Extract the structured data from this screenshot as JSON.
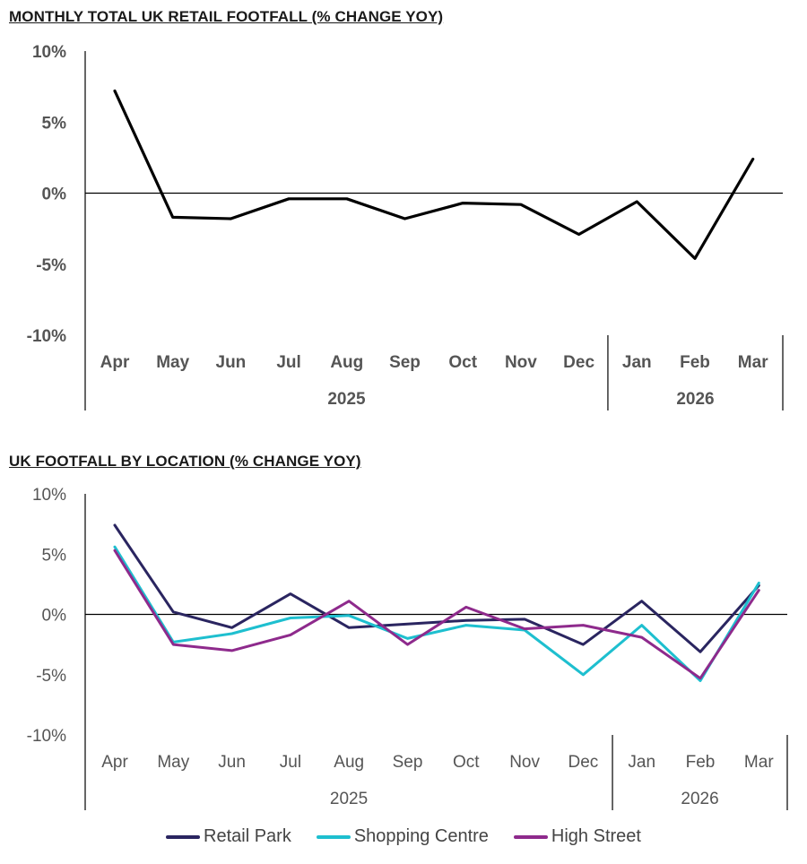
{
  "charts": {
    "total": {
      "title": "MONTHLY TOTAL UK RETAIL FOOTFALL (% CHANGE YOY)"
    },
    "location": {
      "title": "UK FOOTFALL BY LOCATION (% CHANGE YOY)"
    }
  },
  "chart_data": [
    {
      "type": "line",
      "title": "MONTHLY TOTAL UK RETAIL FOOTFALL (% CHANGE YOY)",
      "categories": [
        "Apr",
        "May",
        "Jun",
        "Jul",
        "Aug",
        "Sep",
        "Oct",
        "Nov",
        "Dec",
        "Jan",
        "Feb",
        "Mar"
      ],
      "year_groups": [
        {
          "label": "2025",
          "months": 9
        },
        {
          "label": "2026",
          "months": 3
        }
      ],
      "series": [
        {
          "color": "#000000",
          "values": [
            7.2,
            -1.7,
            -1.8,
            -0.4,
            -0.4,
            -1.8,
            -0.7,
            -0.8,
            -2.9,
            -0.6,
            -4.6,
            2.4
          ]
        }
      ],
      "yticks": [
        "10%",
        "5%",
        "0%",
        "-5%",
        "-10%"
      ],
      "ylim": [
        -10,
        10
      ],
      "grid": false,
      "bold_ticks": true
    },
    {
      "type": "line",
      "title": "UK FOOTFALL BY LOCATION (% CHANGE YOY)",
      "categories": [
        "Apr",
        "May",
        "Jun",
        "Jul",
        "Aug",
        "Sep",
        "Oct",
        "Nov",
        "Dec",
        "Jan",
        "Feb",
        "Mar"
      ],
      "year_groups": [
        {
          "label": "2025",
          "months": 9
        },
        {
          "label": "2026",
          "months": 3
        }
      ],
      "series": [
        {
          "name": "Retail Park",
          "color": "#2a2560",
          "values": [
            7.4,
            0.2,
            -1.1,
            1.7,
            -1.1,
            -0.8,
            -0.5,
            -0.4,
            -2.5,
            1.1,
            -3.1,
            2.4
          ]
        },
        {
          "name": "Shopping Centre",
          "color": "#1ebfcf",
          "values": [
            5.6,
            -2.3,
            -1.6,
            -0.3,
            -0.1,
            -2.0,
            -0.9,
            -1.3,
            -5.0,
            -0.9,
            -5.5,
            2.6
          ]
        },
        {
          "name": "High Street",
          "color": "#8e2a8c",
          "values": [
            5.3,
            -2.5,
            -3.0,
            -1.7,
            1.1,
            -2.5,
            0.6,
            -1.2,
            -0.9,
            -1.9,
            -5.3,
            2.0
          ]
        }
      ],
      "yticks": [
        "10%",
        "5%",
        "0%",
        "-5%",
        "-10%"
      ],
      "ylim": [
        -10,
        10
      ],
      "grid": false,
      "legend": "bottom"
    }
  ]
}
